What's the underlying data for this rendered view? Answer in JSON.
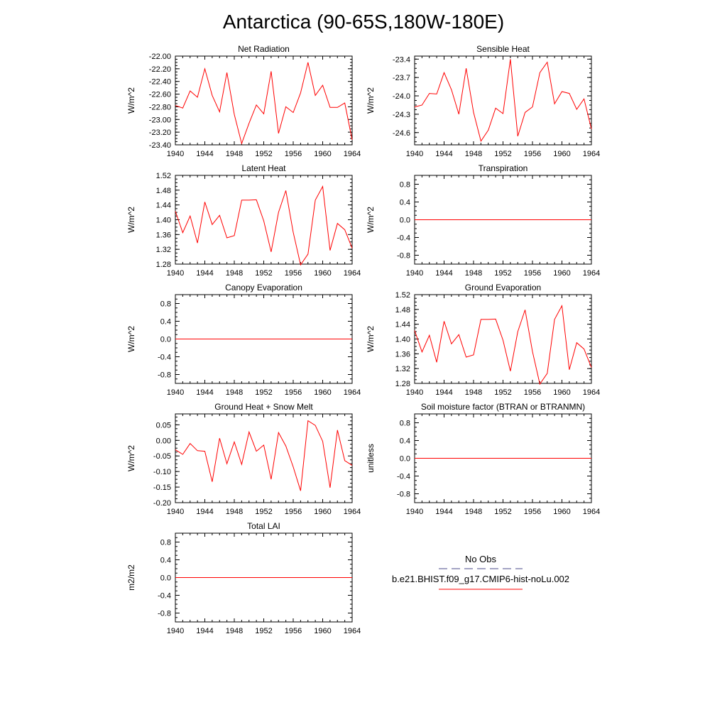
{
  "figure": {
    "title": "Antarctica (90-65S,180W-180E)"
  },
  "legend": {
    "entries": [
      {
        "label": "No Obs",
        "color": "#4a4a8a",
        "style": "dashed"
      },
      {
        "label": "b.e21.BHIST.f09_g17.CMIP6-hist-noLu.002",
        "color": "#ff0000",
        "style": "solid"
      }
    ]
  },
  "chart_data": [
    {
      "type": "line",
      "title": "Net Radiation",
      "ylabel": "W/m^2",
      "xlim": [
        1940,
        1964
      ],
      "ylim": [
        -23.4,
        -22.0
      ],
      "xticks": [
        "1940",
        "1944",
        "1948",
        "1952",
        "1956",
        "1960",
        "1964"
      ],
      "yticks": [
        "-22.00",
        "-22.20",
        "-22.40",
        "-22.60",
        "-22.80",
        "-23.00",
        "-23.20",
        "-23.40"
      ],
      "series": [
        {
          "color": "#ff0000",
          "x": [
            1940,
            1941,
            1942,
            1943,
            1944,
            1945,
            1946,
            1947,
            1948,
            1949,
            1950,
            1951,
            1952,
            1953,
            1954,
            1955,
            1956,
            1957,
            1958,
            1959,
            1960,
            1961,
            1962,
            1963,
            1964
          ],
          "y": [
            -22.78,
            -22.82,
            -22.55,
            -22.65,
            -22.2,
            -22.62,
            -22.88,
            -22.26,
            -22.92,
            -23.38,
            -23.06,
            -22.77,
            -22.91,
            -22.24,
            -23.22,
            -22.8,
            -22.89,
            -22.58,
            -22.1,
            -22.62,
            -22.46,
            -22.81,
            -22.81,
            -22.74,
            -23.32
          ]
        }
      ]
    },
    {
      "type": "line",
      "title": "Sensible Heat",
      "ylabel": "W/m^2",
      "xlim": [
        1940,
        1964
      ],
      "ylim": [
        -24.8,
        -23.35
      ],
      "xticks": [
        "1940",
        "1944",
        "1948",
        "1952",
        "1956",
        "1960",
        "1964"
      ],
      "yticks": [
        "-23.4",
        "-23.7",
        "-24.0",
        "-24.3",
        "-24.6"
      ],
      "series": [
        {
          "color": "#ff0000",
          "x": [
            1940,
            1941,
            1942,
            1943,
            1944,
            1945,
            1946,
            1947,
            1948,
            1949,
            1950,
            1951,
            1952,
            1953,
            1954,
            1955,
            1956,
            1957,
            1958,
            1959,
            1960,
            1961,
            1962,
            1963,
            1964
          ],
          "y": [
            -24.18,
            -24.15,
            -23.96,
            -23.97,
            -23.62,
            -23.9,
            -24.3,
            -23.55,
            -24.27,
            -24.74,
            -24.56,
            -24.2,
            -24.29,
            -23.4,
            -24.66,
            -24.27,
            -24.18,
            -23.62,
            -23.45,
            -24.13,
            -23.93,
            -23.96,
            -24.22,
            -24.05,
            -24.54
          ]
        }
      ]
    },
    {
      "type": "line",
      "title": "Latent Heat",
      "ylabel": "W/m^2",
      "xlim": [
        1940,
        1964
      ],
      "ylim": [
        1.28,
        1.52
      ],
      "xticks": [
        "1940",
        "1944",
        "1948",
        "1952",
        "1956",
        "1960",
        "1964"
      ],
      "yticks": [
        "1.52",
        "1.48",
        "1.44",
        "1.40",
        "1.36",
        "1.32",
        "1.28"
      ],
      "series": [
        {
          "color": "#ff0000",
          "x": [
            1940,
            1941,
            1942,
            1943,
            1944,
            1945,
            1946,
            1947,
            1948,
            1949,
            1950,
            1951,
            1952,
            1953,
            1954,
            1955,
            1956,
            1957,
            1958,
            1959,
            1960,
            1961,
            1962,
            1963,
            1964
          ],
          "y": [
            1.423,
            1.365,
            1.41,
            1.337,
            1.448,
            1.387,
            1.412,
            1.351,
            1.357,
            1.453,
            1.453,
            1.454,
            1.397,
            1.313,
            1.42,
            1.479,
            1.366,
            1.278,
            1.307,
            1.453,
            1.49,
            1.317,
            1.39,
            1.373,
            1.323
          ]
        }
      ]
    },
    {
      "type": "line",
      "title": "Transpiration",
      "ylabel": "W/m^2",
      "xlim": [
        1940,
        1964
      ],
      "ylim": [
        -1.0,
        1.0
      ],
      "xticks": [
        "1940",
        "1944",
        "1948",
        "1952",
        "1956",
        "1960",
        "1964"
      ],
      "yticks": [
        "0.8",
        "0.4",
        "0.0",
        "-0.4",
        "-0.8"
      ],
      "series": [
        {
          "color": "#ff0000",
          "x": [
            1940,
            1964
          ],
          "y": [
            0.0,
            0.0
          ]
        }
      ]
    },
    {
      "type": "line",
      "title": "Canopy Evaporation",
      "ylabel": "W/m^2",
      "xlim": [
        1940,
        1964
      ],
      "ylim": [
        -1.0,
        1.0
      ],
      "xticks": [
        "1940",
        "1944",
        "1948",
        "1952",
        "1956",
        "1960",
        "1964"
      ],
      "yticks": [
        "0.8",
        "0.4",
        "0.0",
        "-0.4",
        "-0.8"
      ],
      "series": [
        {
          "color": "#ff0000",
          "x": [
            1940,
            1964
          ],
          "y": [
            0.0,
            0.0
          ]
        }
      ]
    },
    {
      "type": "line",
      "title": "Ground Evaporation",
      "ylabel": "W/m^2",
      "xlim": [
        1940,
        1964
      ],
      "ylim": [
        1.28,
        1.52
      ],
      "xticks": [
        "1940",
        "1944",
        "1948",
        "1952",
        "1956",
        "1960",
        "1964"
      ],
      "yticks": [
        "1.52",
        "1.48",
        "1.44",
        "1.40",
        "1.36",
        "1.32",
        "1.28"
      ],
      "series": [
        {
          "color": "#ff0000",
          "x": [
            1940,
            1941,
            1942,
            1943,
            1944,
            1945,
            1946,
            1947,
            1948,
            1949,
            1950,
            1951,
            1952,
            1953,
            1954,
            1955,
            1956,
            1957,
            1958,
            1959,
            1960,
            1961,
            1962,
            1963,
            1964
          ],
          "y": [
            1.423,
            1.365,
            1.41,
            1.337,
            1.448,
            1.387,
            1.412,
            1.351,
            1.357,
            1.453,
            1.453,
            1.454,
            1.397,
            1.313,
            1.42,
            1.479,
            1.366,
            1.278,
            1.307,
            1.453,
            1.49,
            1.317,
            1.39,
            1.373,
            1.323
          ]
        }
      ]
    },
    {
      "type": "line",
      "title": "Ground Heat + Snow Melt",
      "ylabel": "W/m^2",
      "xlim": [
        1940,
        1964
      ],
      "ylim": [
        -0.2,
        0.085
      ],
      "xticks": [
        "1940",
        "1944",
        "1948",
        "1952",
        "1956",
        "1960",
        "1964"
      ],
      "yticks": [
        "0.05",
        "0.00",
        "-0.05",
        "-0.10",
        "-0.15",
        "-0.20"
      ],
      "series": [
        {
          "color": "#ff0000",
          "x": [
            1940,
            1941,
            1942,
            1943,
            1944,
            1945,
            1946,
            1947,
            1948,
            1949,
            1950,
            1951,
            1952,
            1953,
            1954,
            1955,
            1956,
            1957,
            1958,
            1959,
            1960,
            1961,
            1962,
            1963,
            1964
          ],
          "y": [
            -0.03,
            -0.045,
            -0.01,
            -0.033,
            -0.035,
            -0.133,
            0.007,
            -0.075,
            -0.005,
            -0.077,
            0.027,
            -0.035,
            -0.015,
            -0.125,
            0.025,
            -0.018,
            -0.085,
            -0.162,
            0.063,
            0.048,
            -0.003,
            -0.152,
            0.033,
            -0.065,
            -0.08
          ]
        }
      ]
    },
    {
      "type": "line",
      "title": "Soil moisture factor (BTRAN or BTRANMN)",
      "ylabel": "unitless",
      "xlim": [
        1940,
        1964
      ],
      "ylim": [
        -1.0,
        1.0
      ],
      "xticks": [
        "1940",
        "1944",
        "1948",
        "1952",
        "1956",
        "1960",
        "1964"
      ],
      "yticks": [
        "0.8",
        "0.4",
        "0.0",
        "-0.4",
        "-0.8"
      ],
      "series": [
        {
          "color": "#ff0000",
          "x": [
            1940,
            1964
          ],
          "y": [
            0.0,
            0.0
          ]
        }
      ]
    },
    {
      "type": "line",
      "title": "Total LAI",
      "ylabel": "m2/m2",
      "xlim": [
        1940,
        1964
      ],
      "ylim": [
        -1.0,
        1.0
      ],
      "xticks": [
        "1940",
        "1944",
        "1948",
        "1952",
        "1956",
        "1960",
        "1964"
      ],
      "yticks": [
        "0.8",
        "0.4",
        "0.0",
        "-0.4",
        "-0.8"
      ],
      "series": [
        {
          "color": "#ff0000",
          "x": [
            1940,
            1964
          ],
          "y": [
            0.0,
            0.0
          ]
        }
      ]
    }
  ]
}
